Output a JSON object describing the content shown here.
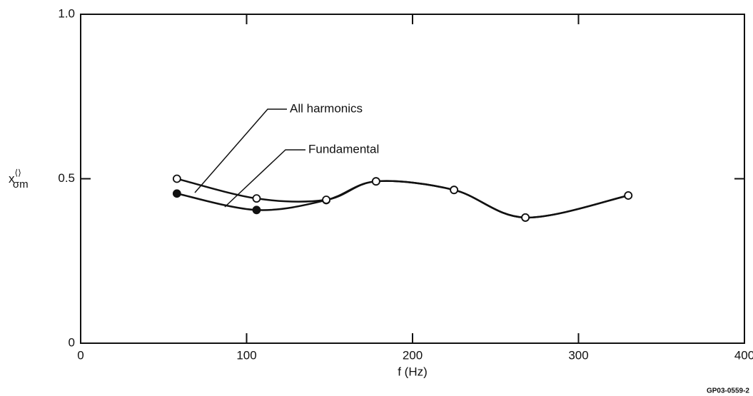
{
  "chart_data": {
    "type": "line",
    "x_label": "f (Hz)",
    "y_label": {
      "base": "x",
      "sup": "⟨⟩",
      "sub": "σm"
    },
    "xlim": [
      0,
      400
    ],
    "xticks": [
      0,
      100,
      200,
      300,
      400
    ],
    "ylim": [
      0,
      1
    ],
    "yticks": [
      0,
      {
        "value": 0.5,
        "label": "0.5"
      },
      {
        "value": 1,
        "label": "1.0"
      }
    ],
    "series": [
      {
        "name": "Fundamental",
        "color": "#111111",
        "marker": "filled",
        "x": [
          58,
          106,
          148,
          178,
          225,
          268,
          330
        ],
        "values": [
          0.455,
          0.405,
          0.435,
          0.492,
          0.466,
          0.382,
          0.449
        ]
      },
      {
        "name": "All harmonics",
        "color": "#111111",
        "marker": "open",
        "x": [
          58,
          106,
          148,
          178,
          225,
          268,
          330
        ],
        "values": [
          0.5,
          0.44,
          0.436,
          0.492,
          0.466,
          0.382,
          0.449
        ]
      }
    ],
    "footer": "GP03-0559-2"
  }
}
